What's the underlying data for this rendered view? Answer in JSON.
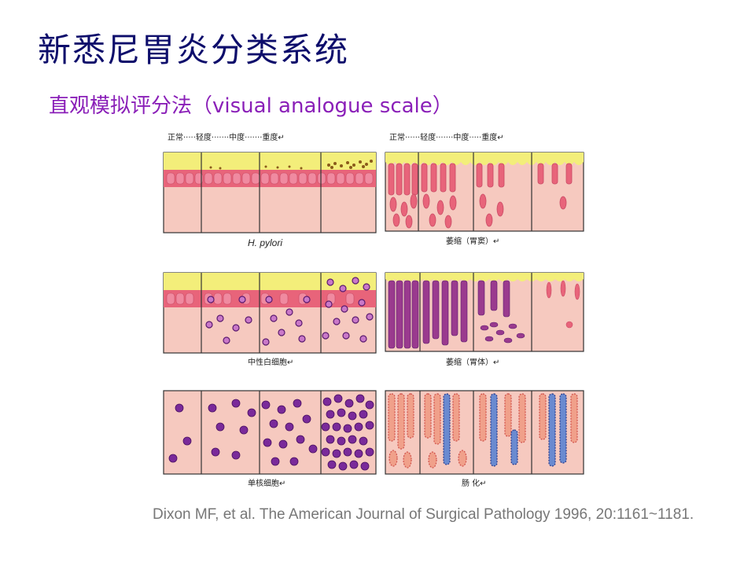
{
  "slide": {
    "title": "新悉尼胃炎分类系统",
    "subtitle": "直观模拟评分法（visual analogue scale）",
    "citation": "Dixon MF, et al. The American Journal of Surgical Pathology 1996, 20:1161~1181."
  },
  "figure": {
    "left_header": "正常·····轻度·······中度·······重度↵",
    "right_header": "正常······轻度·······中度·····重度↵",
    "panels": [
      {
        "caption": "H. pylori",
        "style": "italic"
      },
      {
        "caption": "萎缩（胃窦）↵"
      },
      {
        "caption": "中性白细胞↵"
      },
      {
        "caption": "萎缩（胃体）↵"
      },
      {
        "caption": "单核细胞↵"
      },
      {
        "caption": "肠  化↵"
      }
    ]
  },
  "colors": {
    "title": "#0d0d6b",
    "subtitle": "#8a1fb8",
    "citation": "#777777",
    "mucus_yellow": "#f3ee7a",
    "epithelium_pink": "#e8647a",
    "lamina_pink": "#f6c9bf",
    "inflammatory_purple": "#7a2a9a"
  }
}
